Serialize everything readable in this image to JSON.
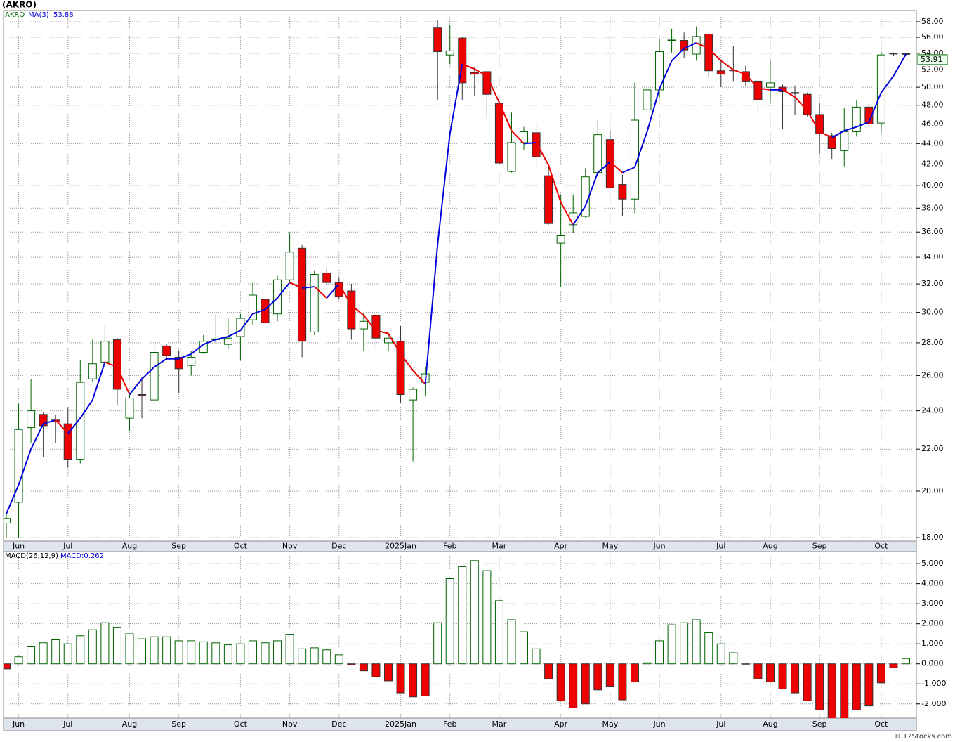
{
  "chart_data": [
    {
      "type": "candlestick",
      "title": "(AKRO)",
      "log_scale": true,
      "grid": true,
      "categories": [
        null,
        null,
        null,
        null,
        null,
        null,
        null,
        null,
        null,
        null,
        null,
        null,
        null,
        null,
        null,
        null,
        null,
        null,
        null,
        null,
        null,
        null,
        null,
        null,
        null,
        null,
        null,
        null,
        null,
        null,
        null,
        null,
        null,
        null,
        null,
        null,
        null,
        null,
        null,
        null,
        null,
        null,
        null,
        null,
        null,
        null,
        null,
        null,
        null,
        null,
        null,
        null,
        null,
        null,
        null,
        null,
        null,
        null,
        null,
        null,
        null,
        null,
        null,
        null,
        null,
        null,
        null,
        null,
        null,
        null,
        null,
        null,
        null,
        null
      ],
      "series": [
        {
          "name": "AKRO",
          "color": "#006400",
          "down_color": "#ee0000",
          "open": [
            18.6,
            19.5,
            23.1,
            23.8,
            23.5,
            23.3,
            21.5,
            25.8,
            26.8,
            28.2,
            23.6,
            24.9,
            24.6,
            27.8,
            27.1,
            26.6,
            27.4,
            28.2,
            27.9,
            28.4,
            29.5,
            30.9,
            29.9,
            32.3,
            34.7,
            28.7,
            32.8,
            32.1,
            31.5,
            28.9,
            29.8,
            28.0,
            28.1,
            24.6,
            25.6,
            57.2,
            53.8,
            55.9,
            51.7,
            51.8,
            48.2,
            41.3,
            44.1,
            45.1,
            40.9,
            35.1,
            36.6,
            37.3,
            41.2,
            44.4,
            40.1,
            38.8,
            47.5,
            49.7,
            55.6,
            55.6,
            53.9,
            56.4,
            51.9,
            52.0,
            51.8,
            50.7,
            50.0,
            50.0,
            49.4,
            49.2,
            47.0,
            44.8,
            43.3,
            45.2,
            47.8,
            46.1,
            54.0,
            53.95
          ],
          "high": [
            19.0,
            24.4,
            25.8,
            23.9,
            23.8,
            24.2,
            26.9,
            28.2,
            29.1,
            28.3,
            24.9,
            25.9,
            27.9,
            27.9,
            27.5,
            27.5,
            28.5,
            29.9,
            29.6,
            29.9,
            32.1,
            31.1,
            32.6,
            35.9,
            35.0,
            33.0,
            33.2,
            32.5,
            32.0,
            30.0,
            29.9,
            28.6,
            29.1,
            25.3,
            26.5,
            58.2,
            57.6,
            56.0,
            52.3,
            52.0,
            48.3,
            47.2,
            45.7,
            46.1,
            41.9,
            39.2,
            39.2,
            41.6,
            46.5,
            45.4,
            41.0,
            50.5,
            51.3,
            55.8,
            57.1,
            56.6,
            57.4,
            56.5,
            53.1,
            54.9,
            52.5,
            50.8,
            53.2,
            50.3,
            50.2,
            49.4,
            48.2,
            45.1,
            47.7,
            48.5,
            48.3,
            54.3,
            54.1,
            54.0
          ],
          "low": [
            18.0,
            18.0,
            22.3,
            21.6,
            22.3,
            21.1,
            21.3,
            25.6,
            26.6,
            24.3,
            22.9,
            23.6,
            24.4,
            26.9,
            25.0,
            26.0,
            27.3,
            27.9,
            27.6,
            26.9,
            29.2,
            28.4,
            29.4,
            32.1,
            27.1,
            28.5,
            31.9,
            30.9,
            28.2,
            27.5,
            27.6,
            27.5,
            24.4,
            21.4,
            24.8,
            48.5,
            52.7,
            48.6,
            49.0,
            46.6,
            42.0,
            41.2,
            43.4,
            41.7,
            36.6,
            31.8,
            35.9,
            37.2,
            40.9,
            39.7,
            37.3,
            37.6,
            47.3,
            48.8,
            54.1,
            53.4,
            53.1,
            51.2,
            50.0,
            50.7,
            50.2,
            47.0,
            48.3,
            45.5,
            47.0,
            46.8,
            43.0,
            42.5,
            41.8,
            44.7,
            45.7,
            45.1,
            53.7,
            53.85
          ],
          "close": [
            18.8,
            23.0,
            24.0,
            23.2,
            23.4,
            21.5,
            25.6,
            26.7,
            28.1,
            25.2,
            24.7,
            24.85,
            27.4,
            27.2,
            26.4,
            27.1,
            28.1,
            28.25,
            28.3,
            29.6,
            31.2,
            29.3,
            32.3,
            34.4,
            28.1,
            32.7,
            32.1,
            31.1,
            28.9,
            29.4,
            28.3,
            28.3,
            24.9,
            25.2,
            26.1,
            54.2,
            54.3,
            50.5,
            51.5,
            49.2,
            42.1,
            44.1,
            45.2,
            42.7,
            36.7,
            35.7,
            37.6,
            40.8,
            44.9,
            39.8,
            38.8,
            46.4,
            49.7,
            54.2,
            55.65,
            54.4,
            56.1,
            51.9,
            51.5,
            51.9,
            50.7,
            48.6,
            50.5,
            49.5,
            49.3,
            47.0,
            45.0,
            43.5,
            45.2,
            47.8,
            46.0,
            53.8,
            53.95,
            53.91
          ]
        },
        {
          "name": "MA(3)",
          "color": "#0000dd",
          "down_color": "#ee0000",
          "values": [
            19.0,
            20.3,
            22.0,
            23.3,
            23.5,
            22.8,
            23.6,
            24.6,
            26.8,
            26.5,
            24.9,
            25.8,
            26.5,
            27.0,
            27.0,
            27.3,
            27.9,
            28.2,
            28.4,
            28.8,
            29.9,
            30.2,
            31.0,
            32.1,
            31.7,
            31.8,
            31.0,
            32.0,
            30.5,
            29.8,
            28.8,
            28.6,
            27.3,
            26.3,
            25.5,
            35.0,
            45.0,
            52.7,
            52.1,
            51.3,
            48.3,
            45.3,
            44.0,
            44.1,
            41.9,
            38.5,
            36.6,
            38.2,
            41.2,
            42.2,
            41.2,
            41.7,
            45.2,
            49.8,
            53.1,
            54.6,
            55.3,
            54.6,
            53.1,
            52.0,
            51.5,
            49.9,
            49.7,
            49.7,
            48.9,
            47.4,
            45.2,
            44.6,
            45.3,
            45.7,
            46.2,
            49.4,
            51.3,
            53.88
          ]
        }
      ],
      "ylim": [
        17.86,
        59.5
      ],
      "yticks": [
        {
          "value": 18,
          "label": "18.00"
        },
        {
          "value": 20,
          "label": "20.00"
        },
        {
          "value": 22,
          "label": "22.00"
        },
        {
          "value": 24,
          "label": "24.00"
        },
        {
          "value": 26,
          "label": "26.00"
        },
        {
          "value": 28,
          "label": "28.00"
        },
        {
          "value": 30,
          "label": "30.00"
        },
        {
          "value": 32,
          "label": "32.00"
        },
        {
          "value": 34,
          "label": "34.00"
        },
        {
          "value": 36,
          "label": "36.00"
        },
        {
          "value": 38,
          "label": "38.00"
        },
        {
          "value": 40,
          "label": "40.00"
        },
        {
          "value": 42,
          "label": "42.00"
        },
        {
          "value": 44,
          "label": "44.00"
        },
        {
          "value": 46,
          "label": "46.00"
        },
        {
          "value": 48,
          "label": "48.00"
        },
        {
          "value": 50,
          "label": "50.00"
        },
        {
          "value": 52,
          "label": "52.00"
        },
        {
          "value": 54,
          "label": "54.00"
        },
        {
          "value": 56,
          "label": "56.00"
        },
        {
          "value": 58,
          "label": "58.00"
        }
      ],
      "xticks": [
        {
          "value": 1,
          "label": "Jun"
        },
        {
          "value": 5,
          "label": "Jul"
        },
        {
          "value": 10,
          "label": "Aug"
        },
        {
          "value": 14,
          "label": "Sep"
        },
        {
          "value": 19,
          "label": "Oct"
        },
        {
          "value": 23,
          "label": "Nov"
        },
        {
          "value": 27,
          "label": "Dec"
        },
        {
          "value": 32,
          "label": "2025Jan"
        },
        {
          "value": 36,
          "label": "Feb"
        },
        {
          "value": 40,
          "label": "Mar"
        },
        {
          "value": 45,
          "label": "Apr"
        },
        {
          "value": 49,
          "label": "May"
        },
        {
          "value": 53,
          "label": "Jun"
        },
        {
          "value": 58,
          "label": "Jul"
        },
        {
          "value": 62,
          "label": "Aug"
        },
        {
          "value": 66,
          "label": "Sep"
        },
        {
          "value": 71,
          "label": "Oct"
        }
      ]
    },
    {
      "type": "bar",
      "title": "MACD(26,12,9)",
      "subtitle": "MACD:0.262",
      "grid": true,
      "color": "#006400",
      "negative_color": "#ee0000",
      "categories": [
        null,
        null,
        null,
        null,
        null,
        null,
        null,
        null,
        null,
        null,
        null,
        null,
        null,
        null,
        null,
        null,
        null,
        null,
        null,
        null,
        null,
        null,
        null,
        null,
        null,
        null,
        null,
        null,
        null,
        null,
        null,
        null,
        null,
        null,
        null,
        null,
        null,
        null,
        null,
        null,
        null,
        null,
        null,
        null,
        null,
        null,
        null,
        null,
        null,
        null,
        null,
        null,
        null,
        null,
        null,
        null,
        null,
        null,
        null,
        null,
        null,
        null,
        null,
        null,
        null,
        null,
        null,
        null,
        null,
        null,
        null,
        null,
        null,
        null
      ],
      "values": [
        -0.25,
        0.35,
        0.85,
        1.05,
        1.2,
        1.0,
        1.4,
        1.7,
        2.05,
        1.8,
        1.5,
        1.25,
        1.35,
        1.35,
        1.15,
        1.15,
        1.1,
        1.05,
        0.95,
        1.0,
        1.15,
        1.05,
        1.15,
        1.45,
        0.75,
        0.8,
        0.7,
        0.45,
        -0.05,
        -0.35,
        -0.65,
        -0.85,
        -1.45,
        -1.65,
        -1.6,
        2.05,
        4.25,
        4.85,
        5.15,
        4.65,
        3.15,
        2.2,
        1.6,
        0.75,
        -0.75,
        -1.85,
        -2.2,
        -2.0,
        -1.3,
        -1.15,
        -1.8,
        -0.9,
        0.05,
        1.15,
        1.95,
        2.05,
        2.2,
        1.55,
        1.0,
        0.55,
        -0.02,
        -0.75,
        -0.9,
        -1.25,
        -1.45,
        -1.85,
        -2.3,
        -2.9,
        -2.75,
        -2.3,
        -2.1,
        -0.95,
        -0.2,
        0.262
      ],
      "ylim": [
        -2.71,
        5.6
      ],
      "yticks": [
        {
          "value": -2,
          "label": "-2.000"
        },
        {
          "value": -1,
          "label": "-1.000"
        },
        {
          "value": 0,
          "label": "0.000"
        },
        {
          "value": 1,
          "label": "1.000"
        },
        {
          "value": 2,
          "label": "2.000"
        },
        {
          "value": 3,
          "label": "3.000"
        },
        {
          "value": 4,
          "label": "4.000"
        },
        {
          "value": 5,
          "label": "5.000"
        }
      ],
      "xticks": [
        {
          "value": 1,
          "label": "Jun"
        },
        {
          "value": 5,
          "label": "Jul"
        },
        {
          "value": 10,
          "label": "Aug"
        },
        {
          "value": 14,
          "label": "Sep"
        },
        {
          "value": 19,
          "label": "Oct"
        },
        {
          "value": 23,
          "label": "Nov"
        },
        {
          "value": 27,
          "label": "Dec"
        },
        {
          "value": 32,
          "label": "2025Jan"
        },
        {
          "value": 36,
          "label": "Feb"
        },
        {
          "value": 40,
          "label": "Mar"
        },
        {
          "value": 45,
          "label": "Apr"
        },
        {
          "value": 49,
          "label": "May"
        },
        {
          "value": 53,
          "label": "Jun"
        },
        {
          "value": 58,
          "label": "Jul"
        },
        {
          "value": 62,
          "label": "Aug"
        },
        {
          "value": 66,
          "label": "Sep"
        },
        {
          "value": 71,
          "label": "Oct"
        }
      ]
    }
  ],
  "footer": "© 12Stocks.com"
}
